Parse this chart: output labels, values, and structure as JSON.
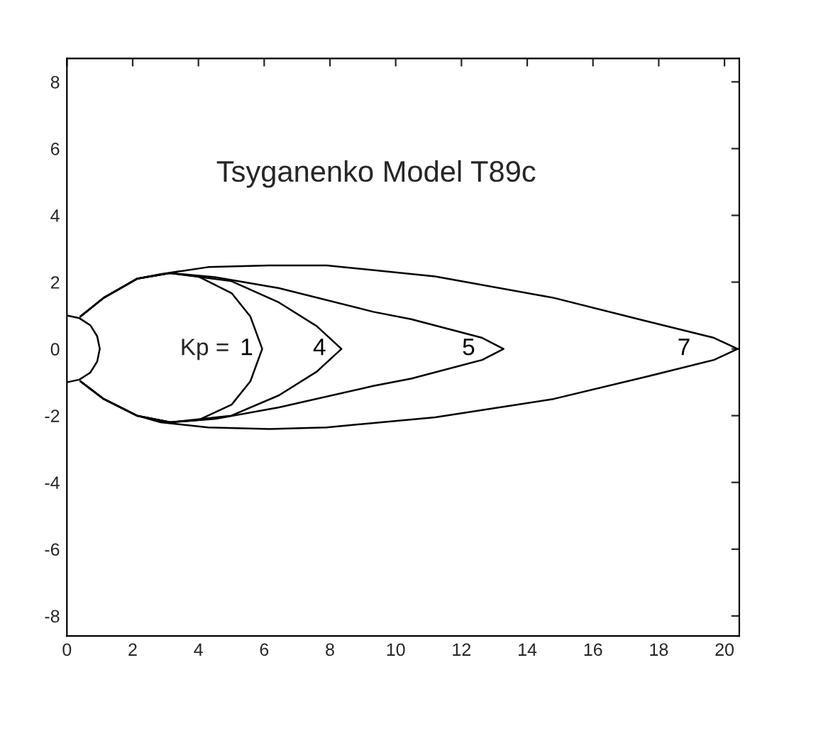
{
  "chart_data": {
    "type": "line",
    "title": "Tsyganenko Model T89c",
    "xlim": [
      0,
      20.45
    ],
    "ylim": [
      -8.6,
      8.7
    ],
    "xticks": [
      0,
      2,
      4,
      6,
      8,
      10,
      12,
      14,
      16,
      18,
      20
    ],
    "yticks": [
      -8,
      -6,
      -4,
      -2,
      0,
      2,
      4,
      6,
      8
    ],
    "grid": false,
    "legend": false,
    "series": [
      {
        "color": "#000000",
        "x": [
          0,
          0.38,
          0.71,
          0.92,
          1,
          0.92,
          0.71,
          0.38,
          0
        ],
        "values": [
          1,
          0.92,
          0.71,
          0.38,
          0,
          -0.38,
          -0.71,
          -0.92,
          -1
        ]
      },
      {
        "name": "1",
        "color": "#000000",
        "x": [
          0.41,
          1.12,
          2.13,
          3.14,
          4.0,
          5.01,
          5.58,
          5.94,
          5.58,
          5.01,
          4.0,
          3.14,
          2.13,
          1.12,
          0.41
        ],
        "values": [
          0.97,
          1.53,
          2.1,
          2.27,
          2.17,
          1.67,
          0.97,
          0,
          -0.97,
          -1.67,
          -2.13,
          -2.2,
          -2.0,
          -1.5,
          -0.97
        ]
      },
      {
        "name": "4",
        "color": "#000000",
        "x": [
          0.41,
          1.12,
          2.13,
          3.14,
          5.0,
          6.45,
          7.6,
          8.35,
          7.6,
          6.45,
          5.0,
          3.14,
          2.13,
          1.12,
          0.41
        ],
        "values": [
          0.97,
          1.53,
          2.1,
          2.27,
          2.03,
          1.39,
          0.68,
          0,
          -0.68,
          -1.39,
          -2.0,
          -2.2,
          -2.0,
          -1.5,
          -0.97
        ]
      },
      {
        "name": "5",
        "color": "#000000",
        "x": [
          0.41,
          1.12,
          2.13,
          3.14,
          4.5,
          6.45,
          9.32,
          10.47,
          12.63,
          13.28,
          12.63,
          10.47,
          9.32,
          6.45,
          4.5,
          3.14,
          2.13,
          1.12,
          0.41
        ],
        "values": [
          0.97,
          1.53,
          2.1,
          2.27,
          2.15,
          1.82,
          1.11,
          0.89,
          0.33,
          0,
          -0.33,
          -0.89,
          -1.11,
          -1.75,
          -2.1,
          -2.2,
          -2.0,
          -1.5,
          -0.97
        ]
      },
      {
        "name": "7",
        "color": "#000000",
        "x": [
          0.41,
          1.12,
          2.13,
          2.85,
          4.29,
          6.16,
          7.9,
          11.2,
          14.8,
          17.67,
          19.68,
          20.4,
          19.68,
          17.67,
          14.8,
          11.2,
          7.9,
          6.16,
          4.29,
          2.85,
          2.13,
          1.12,
          0.41
        ],
        "values": [
          0.97,
          1.53,
          2.1,
          2.24,
          2.45,
          2.5,
          2.5,
          2.17,
          1.53,
          0.82,
          0.33,
          0,
          -0.33,
          -0.82,
          -1.5,
          -2.05,
          -2.35,
          -2.4,
          -2.35,
          -2.2,
          -2.0,
          -1.5,
          -0.97
        ]
      }
    ],
    "annotations": [
      "Kp ="
    ]
  }
}
